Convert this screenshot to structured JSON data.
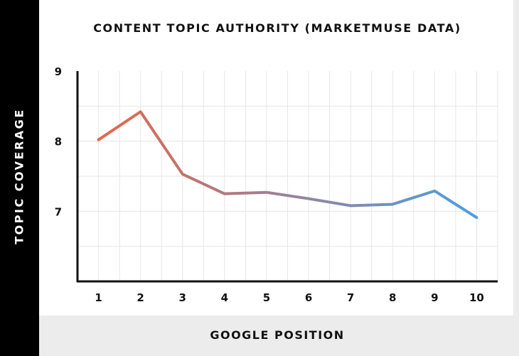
{
  "chart_data": {
    "type": "line",
    "title": "CONTENT TOPIC AUTHORITY (MARKETMUSE DATA)",
    "xlabel": "GOOGLE POSITION",
    "ylabel": "TOPIC COVERAGE",
    "x": [
      1,
      2,
      3,
      4,
      5,
      6,
      7,
      8,
      9,
      10
    ],
    "x_tick_labels": [
      "1",
      "2",
      "3",
      "4",
      "5",
      "6",
      "7",
      "8",
      "9",
      "10"
    ],
    "y_tick_labels": [
      "9",
      "8",
      "7"
    ],
    "y_ticks": [
      9,
      8,
      7
    ],
    "series": [
      {
        "values": [
          8.02,
          8.42,
          7.53,
          7.25,
          7.27,
          7.18,
          7.08,
          7.1,
          7.29,
          6.91
        ]
      }
    ],
    "ylim": [
      6,
      9
    ],
    "grid": true,
    "colors": {
      "start": "#e4674b",
      "end": "#4d9ee6"
    }
  }
}
